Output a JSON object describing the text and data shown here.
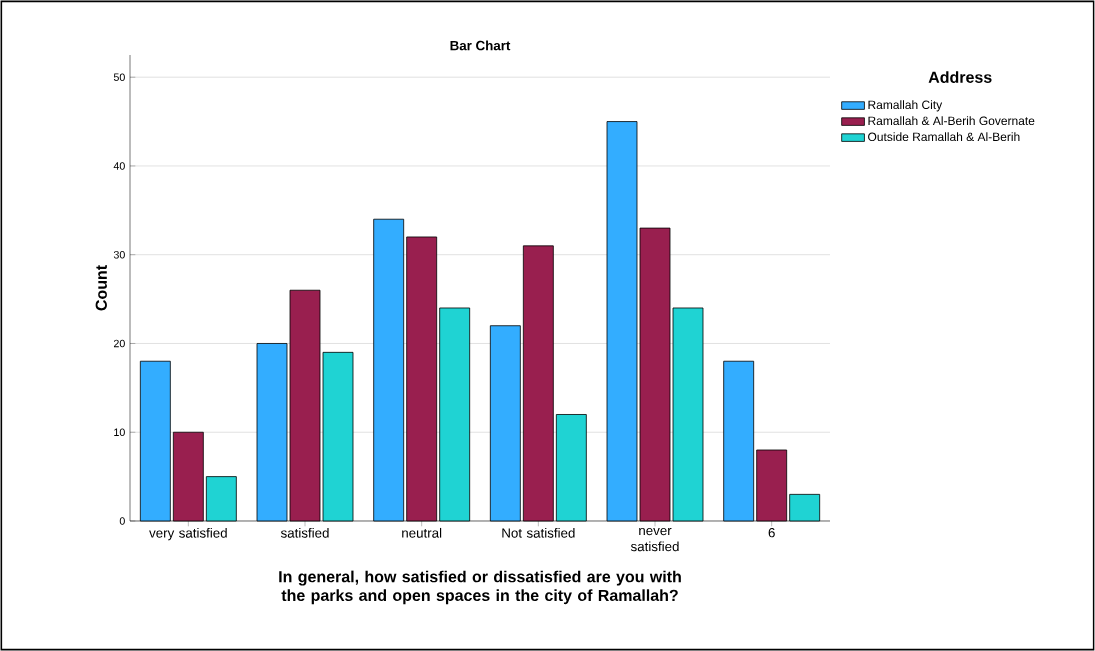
{
  "chart_data": {
    "type": "bar",
    "title": "Bar Chart",
    "xlabel": "In general, how satisfied or dissatisfied are you with the parks and open spaces in the city of Ramallah?",
    "ylabel": "Count",
    "legend_title": "Address",
    "categories": [
      "very satisfied",
      "satisfied",
      "neutral",
      "Not satisfied",
      "never satisfied",
      "6"
    ],
    "series": [
      {
        "name": "Ramallah City",
        "color": "#33adff",
        "values": [
          18,
          20,
          34,
          22,
          45,
          18
        ]
      },
      {
        "name": "Ramallah & Al-Berih Governate",
        "color": "#991f4f",
        "values": [
          10,
          26,
          32,
          31,
          33,
          8
        ]
      },
      {
        "name": "Outside Ramallah & Al-Berih",
        "color": "#1fd3d3",
        "values": [
          5,
          19,
          24,
          12,
          24,
          3
        ]
      }
    ],
    "ylim": [
      0,
      52.5
    ],
    "yticks": [
      0,
      10,
      20,
      30,
      40,
      50
    ],
    "grid": "y",
    "legend": "right"
  }
}
